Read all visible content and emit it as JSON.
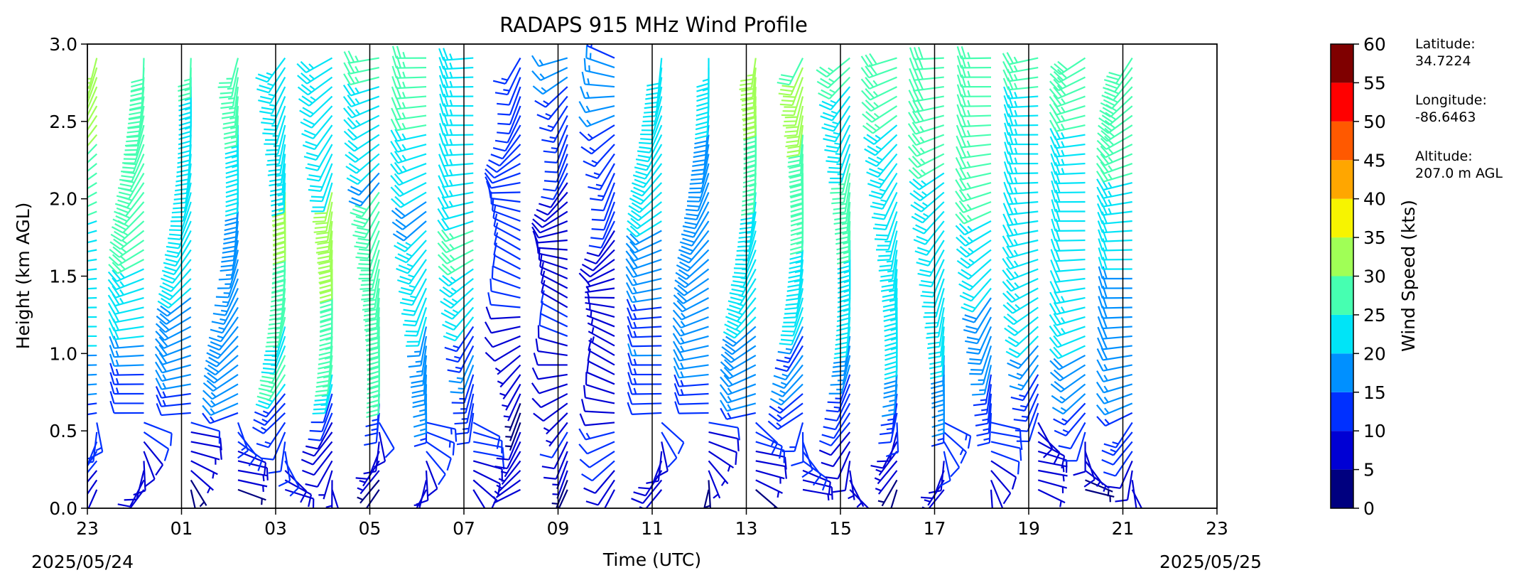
{
  "chart_data": {
    "type": "wind_barbs",
    "title": "RADAPS 915 MHz Wind Profile",
    "xlabel": "Time (UTC)",
    "ylabel": "Height (km AGL)",
    "x_tick_labels": [
      "23",
      "01",
      "03",
      "05",
      "07",
      "09",
      "11",
      "13",
      "15",
      "17",
      "19",
      "21",
      "23"
    ],
    "x_hours_from_start": [
      0,
      2,
      4,
      6,
      8,
      10,
      12,
      14,
      16,
      18,
      20,
      22,
      24
    ],
    "xlim_hours": [
      0,
      24
    ],
    "date_labels": {
      "start": "2025/05/24",
      "end": "2025/05/25"
    },
    "y_tick_labels": [
      "0.0",
      "0.5",
      "1.0",
      "1.5",
      "2.0",
      "2.5",
      "3.0"
    ],
    "y_ticks": [
      0,
      0.5,
      1.0,
      1.5,
      2.0,
      2.5,
      3.0
    ],
    "ylim": [
      0,
      3.0
    ],
    "separator_hours": [
      2,
      4,
      6,
      8,
      10,
      12,
      14,
      16,
      18,
      20,
      22
    ],
    "profile_times_hours": [
      0.2,
      1.2,
      2.2,
      3.2,
      4.2,
      5.2,
      6.2,
      7.2,
      8.2,
      9.2,
      10.2,
      11.2,
      12.2,
      13.2,
      14.2,
      15.2,
      16.2,
      17.2,
      18.2,
      19.2,
      20.2,
      21.2,
      22.2
    ],
    "colorbar": {
      "label": "Wind Speed (kts)",
      "ticks": [
        0,
        5,
        10,
        15,
        20,
        25,
        30,
        35,
        40,
        45,
        50,
        55,
        60
      ],
      "colors": [
        "#00007f",
        "#0000d4",
        "#0030ff",
        "#0090ff",
        "#00e4f7",
        "#46ffb1",
        "#a0ff56",
        "#f7f400",
        "#ffa600",
        "#ff5900",
        "#ff0000",
        "#7f0000"
      ]
    },
    "station": {
      "latitude_label": "Latitude:",
      "latitude": "34.7224",
      "longitude_label": "Longitude:",
      "longitude": "-86.6463",
      "altitude_label": "Altitude:",
      "altitude": "207.0 m AGL"
    }
  }
}
